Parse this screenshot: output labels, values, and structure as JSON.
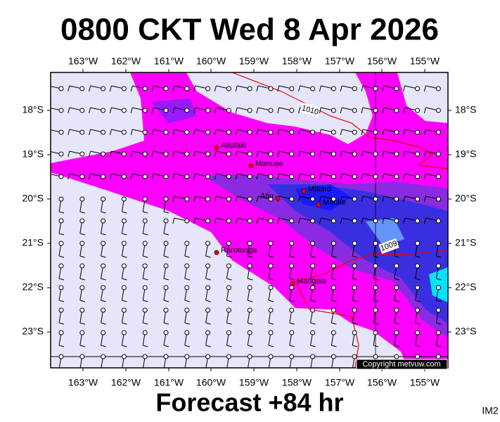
{
  "header": {
    "title": "0800 CKT Wed 8 Apr 2026"
  },
  "map": {
    "longitude_labels": [
      "163°W",
      "162°W",
      "161°W",
      "160°W",
      "159°W",
      "158°W",
      "157°W",
      "156°W",
      "155°W"
    ],
    "latitude_labels": [
      "18°S",
      "19°S",
      "20°S",
      "21°S",
      "22°S",
      "23°S"
    ],
    "places": [
      {
        "name": "Aitutaki"
      },
      {
        "name": "Manuae"
      },
      {
        "name": "Atiu"
      },
      {
        "name": "Mitiaro"
      },
      {
        "name": "Mauke"
      },
      {
        "name": "Rarotonga"
      },
      {
        "name": "Mangaia"
      }
    ],
    "isobar_labels": [
      "1010",
      "1009"
    ],
    "copyright": "Copyright metvuw.com"
  },
  "footer": {
    "forecast": "Forecast +84 hr",
    "image_id": "IM2"
  }
}
